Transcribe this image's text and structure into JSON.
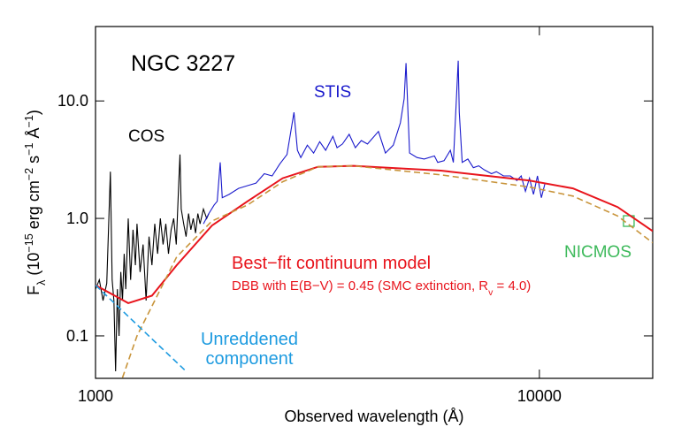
{
  "chart_data": {
    "type": "line",
    "xscale": "log",
    "yscale": "log",
    "xlim": [
      1000,
      18000
    ],
    "ylim": [
      0.0435,
      43
    ],
    "xticks": [
      1000,
      10000
    ],
    "yticks": [
      0.1,
      {
        "value": 1,
        "label": "1.0"
      },
      {
        "value": 10,
        "label": "10.0"
      }
    ],
    "xlabel": "Observed wavelength (Å)",
    "ylabel": [
      {
        "text": "F"
      },
      {
        "text": "λ",
        "shift": "sub"
      },
      {
        "text": " (10"
      },
      {
        "text": "−15",
        "shift": "sup"
      },
      {
        "text": " erg cm"
      },
      {
        "text": "−2",
        "shift": "sup"
      },
      {
        "text": " s"
      },
      {
        "text": "−1",
        "shift": "sup"
      },
      {
        "text": " Å"
      },
      {
        "text": "−1",
        "shift": "sup"
      },
      {
        "text": ")"
      }
    ],
    "title": "NGC 3227",
    "model_note": [
      {
        "text": "DBB with E(B−V) = 0.45 (SMC extinction, R"
      },
      {
        "text": "v",
        "shift": "sub"
      },
      {
        "text": " = 4.0)"
      }
    ],
    "unreddened_label": [
      "Unreddened",
      "component"
    ],
    "series": [
      {
        "name": "COS",
        "color": "#000000",
        "x": [
          1000,
          1020,
          1040,
          1060,
          1080,
          1090,
          1100,
          1110,
          1120,
          1130,
          1140,
          1150,
          1160,
          1170,
          1185,
          1200,
          1215,
          1230,
          1240,
          1260,
          1280,
          1300,
          1320,
          1340,
          1360,
          1380,
          1400,
          1420,
          1440,
          1460,
          1480,
          1500,
          1520,
          1540,
          1550,
          1560,
          1580,
          1600,
          1620,
          1640,
          1660,
          1680,
          1700,
          1720,
          1750,
          1780,
          1800
        ],
        "values": [
          0.25,
          0.3,
          0.2,
          0.28,
          2.5,
          0.3,
          0.2,
          0.05,
          0.25,
          0.1,
          0.35,
          0.2,
          0.5,
          0.25,
          1.0,
          0.3,
          0.8,
          0.4,
          0.9,
          0.35,
          0.6,
          0.2,
          0.7,
          0.4,
          0.9,
          0.5,
          1.0,
          0.6,
          0.9,
          0.5,
          0.8,
          1.0,
          0.6,
          2.0,
          3.5,
          1.2,
          0.9,
          0.7,
          1.1,
          0.8,
          1.0,
          0.75,
          1.1,
          0.9,
          1.2,
          1.0,
          1.1
        ]
      },
      {
        "name": "STIS",
        "color": "#1a1acc",
        "x": [
          1750,
          1800,
          1850,
          1880,
          1910,
          1930,
          2000,
          2100,
          2200,
          2300,
          2400,
          2500,
          2600,
          2700,
          2800,
          2850,
          2900,
          3000,
          3100,
          3200,
          3300,
          3426,
          3500,
          3600,
          3727,
          3850,
          3970,
          4100,
          4340,
          4500,
          4686,
          4861,
          4959,
          5007,
          5100,
          5300,
          5500,
          5800,
          5900,
          6100,
          6300,
          6400,
          6563,
          6600,
          6700,
          6900,
          7100,
          7300,
          7500,
          7800,
          8000,
          8300,
          8600,
          8900,
          9100,
          9300,
          9500,
          9700,
          9900,
          10100,
          10300
        ],
        "values": [
          0.9,
          1.1,
          1.3,
          1.4,
          3.0,
          1.5,
          1.6,
          1.8,
          1.9,
          2.0,
          2.4,
          2.3,
          2.9,
          3.5,
          8.0,
          3.8,
          3.3,
          4.2,
          3.6,
          4.5,
          3.8,
          5.0,
          4.0,
          4.3,
          5.2,
          4.0,
          4.6,
          4.3,
          5.5,
          3.6,
          4.2,
          6.5,
          10.5,
          21,
          3.6,
          3.3,
          3.2,
          3.4,
          3.0,
          3.1,
          3.8,
          3.0,
          22,
          8.0,
          3.0,
          3.2,
          2.7,
          2.8,
          2.6,
          2.4,
          2.5,
          2.3,
          2.3,
          2.1,
          2.3,
          1.7,
          2.2,
          1.6,
          2.3,
          1.5,
          2.0
        ]
      },
      {
        "name": "NICMOS",
        "color": "#3cb95a",
        "marker": "square",
        "x": [
          15900
        ],
        "values": [
          0.95
        ]
      },
      {
        "name": "Best−fit continuum model",
        "color": "#e8141c",
        "x": [
          1000,
          1185,
          1340,
          1524,
          1830,
          2200,
          2640,
          3170,
          3810,
          6000,
          9500,
          11900,
          15000,
          18000
        ],
        "values": [
          0.27,
          0.19,
          0.22,
          0.4,
          0.87,
          1.4,
          2.2,
          2.75,
          2.8,
          2.55,
          2.1,
          1.8,
          1.25,
          0.78
        ]
      },
      {
        "color": "#c8943a",
        "dash": true,
        "x": [
          1150,
          1240,
          1524,
          1830,
          2200,
          2640,
          3170,
          3810,
          6000,
          9500,
          11900,
          15000,
          18000
        ],
        "values": [
          0.044,
          0.1,
          0.47,
          0.95,
          1.3,
          2.05,
          2.75,
          2.8,
          2.35,
          1.85,
          1.55,
          1.05,
          0.62
        ]
      },
      {
        "color": "#1e9be0",
        "dash": true,
        "x": [
          1000,
          1300,
          1600
        ],
        "values": [
          0.27,
          0.105,
          0.05
        ]
      }
    ]
  }
}
